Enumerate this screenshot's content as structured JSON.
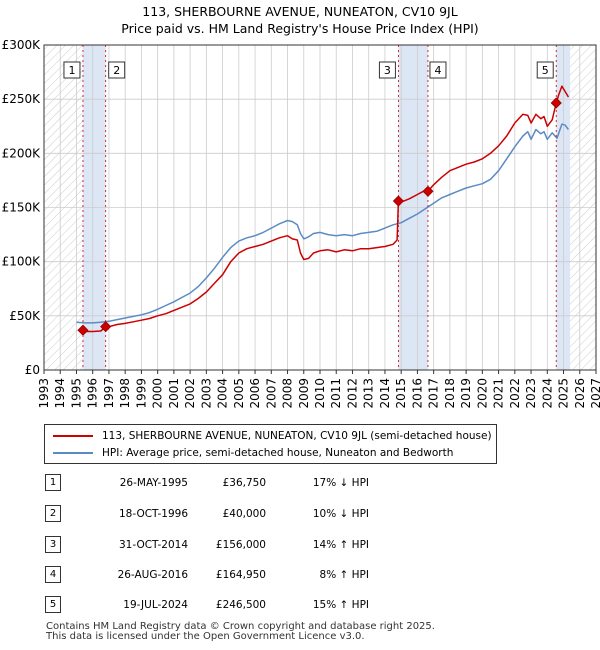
{
  "title_line1": "113, SHERBOURNE AVENUE, NUNEATON, CV10 9JL",
  "title_line2": "Price paid vs. HM Land Registry's House Price Index (HPI)",
  "colors": {
    "property": "#cc0000",
    "hpi": "#5b8bc5",
    "shade": "#dde6f4",
    "grid": "#cccccc"
  },
  "chart_data": {
    "type": "line",
    "title": "Price paid vs. HM Land Registry's House Price Index (HPI)",
    "xlabel": "",
    "ylabel": "",
    "xlim": [
      1993,
      2027
    ],
    "ylim": [
      0,
      300000
    ],
    "x_ticks": [
      1993,
      1994,
      1995,
      1996,
      1997,
      1998,
      1999,
      2000,
      2001,
      2002,
      2003,
      2004,
      2005,
      2006,
      2007,
      2008,
      2009,
      2010,
      2011,
      2012,
      2013,
      2014,
      2015,
      2016,
      2017,
      2018,
      2019,
      2020,
      2021,
      2022,
      2023,
      2024,
      2025,
      2026,
      2027
    ],
    "y_ticks": [
      0,
      50000,
      100000,
      150000,
      200000,
      250000,
      300000
    ],
    "y_tick_labels": [
      "£0",
      "£50K",
      "£100K",
      "£150K",
      "£200K",
      "£250K",
      "£300K"
    ],
    "grid": true,
    "hatched_ranges": [
      [
        1993,
        1995.4
      ],
      [
        2025.4,
        2027
      ]
    ],
    "shaded_ranges": [
      [
        1995.4,
        1996.8
      ],
      [
        2014.83,
        2016.65
      ],
      [
        2024.55,
        2025.4
      ]
    ],
    "series": [
      {
        "name": "113, SHERBOURNE AVENUE, NUNEATON, CV10 9JL (semi-detached house)",
        "color": "#cc0000",
        "x": [
          1995.4,
          1995.6,
          1996.0,
          1996.5,
          1996.8,
          1997.0,
          1997.5,
          1998.0,
          1998.5,
          1999.0,
          1999.5,
          2000.0,
          2000.5,
          2001.0,
          2001.5,
          2002.0,
          2002.5,
          2003.0,
          2003.5,
          2004.0,
          2004.5,
          2005.0,
          2005.5,
          2006.0,
          2006.5,
          2007.0,
          2007.5,
          2008.0,
          2008.3,
          2008.6,
          2008.8,
          2009.0,
          2009.3,
          2009.6,
          2010.0,
          2010.5,
          2011.0,
          2011.5,
          2012.0,
          2012.5,
          2013.0,
          2013.5,
          2014.0,
          2014.5,
          2014.75,
          2014.83,
          2015.0,
          2015.5,
          2016.0,
          2016.5,
          2016.65,
          2017.0,
          2017.5,
          2018.0,
          2018.5,
          2019.0,
          2019.5,
          2020.0,
          2020.5,
          2021.0,
          2021.5,
          2022.0,
          2022.5,
          2022.8,
          2023.0,
          2023.3,
          2023.6,
          2023.8,
          2024.0,
          2024.3,
          2024.55,
          2024.7,
          2024.9,
          2025.1,
          2025.3
        ],
        "values": [
          36750,
          35500,
          35500,
          36000,
          40000,
          40000,
          42000,
          43000,
          44500,
          46000,
          47500,
          50000,
          52000,
          55000,
          58000,
          61000,
          66000,
          72000,
          80000,
          88000,
          100000,
          108000,
          112000,
          114000,
          116000,
          119000,
          122000,
          124000,
          121000,
          120000,
          108000,
          102000,
          103000,
          108000,
          110000,
          111000,
          109000,
          111000,
          110000,
          112000,
          112000,
          113000,
          114000,
          116000,
          120000,
          156000,
          155000,
          158000,
          162000,
          166000,
          164950,
          171000,
          178000,
          184000,
          187000,
          190000,
          192000,
          195000,
          200000,
          207000,
          216000,
          228000,
          236000,
          235000,
          228000,
          236000,
          232000,
          234000,
          225000,
          231000,
          246500,
          254000,
          262000,
          257000,
          252000
        ]
      },
      {
        "name": "HPI: Average price, semi-detached house, Nuneaton and Bedworth",
        "color": "#5b8bc5",
        "x": [
          1995.0,
          1995.5,
          1996.0,
          1996.5,
          1997.0,
          1997.5,
          1998.0,
          1998.5,
          1999.0,
          1999.5,
          2000.0,
          2000.5,
          2001.0,
          2001.5,
          2002.0,
          2002.5,
          2003.0,
          2003.5,
          2004.0,
          2004.5,
          2005.0,
          2005.5,
          2006.0,
          2006.5,
          2007.0,
          2007.5,
          2008.0,
          2008.3,
          2008.6,
          2008.8,
          2009.0,
          2009.3,
          2009.6,
          2010.0,
          2010.5,
          2011.0,
          2011.5,
          2012.0,
          2012.5,
          2013.0,
          2013.5,
          2014.0,
          2014.5,
          2015.0,
          2015.5,
          2016.0,
          2016.5,
          2017.0,
          2017.5,
          2018.0,
          2018.5,
          2019.0,
          2019.5,
          2020.0,
          2020.5,
          2021.0,
          2021.5,
          2022.0,
          2022.5,
          2022.8,
          2023.0,
          2023.3,
          2023.6,
          2023.8,
          2024.0,
          2024.3,
          2024.6,
          2024.9,
          2025.1,
          2025.3
        ],
        "values": [
          44000,
          43500,
          43500,
          44000,
          45000,
          46500,
          48000,
          49500,
          51000,
          53000,
          56000,
          59500,
          63000,
          67000,
          71000,
          77000,
          85000,
          94000,
          104000,
          113000,
          119000,
          122000,
          124000,
          127000,
          131000,
          135000,
          138000,
          137000,
          134000,
          126000,
          121000,
          123000,
          126000,
          127000,
          125000,
          124000,
          125000,
          124000,
          126000,
          127000,
          128000,
          131000,
          134000,
          136000,
          140000,
          144000,
          149000,
          154000,
          159000,
          162000,
          165000,
          168000,
          170000,
          172000,
          176000,
          184000,
          195000,
          206000,
          216000,
          220000,
          213000,
          222000,
          218000,
          220000,
          213000,
          219000,
          214000,
          227000,
          226000,
          222000
        ]
      }
    ],
    "markers": [
      {
        "label": "1",
        "x": 1995.4,
        "value": 36750
      },
      {
        "label": "2",
        "x": 1996.8,
        "value": 40000
      },
      {
        "label": "3",
        "x": 2014.83,
        "value": 156000
      },
      {
        "label": "4",
        "x": 2016.65,
        "value": 164950
      },
      {
        "label": "5",
        "x": 2024.55,
        "value": 246500
      }
    ]
  },
  "legend": {
    "property": "113, SHERBOURNE AVENUE, NUNEATON, CV10 9JL (semi-detached house)",
    "hpi": "HPI: Average price, semi-detached house, Nuneaton and Bedworth"
  },
  "sales": [
    {
      "num": "1",
      "date": "26-MAY-1995",
      "price": "£36,750",
      "hpi": "17% ↓ HPI"
    },
    {
      "num": "2",
      "date": "18-OCT-1996",
      "price": "£40,000",
      "hpi": "10% ↓ HPI"
    },
    {
      "num": "3",
      "date": "31-OCT-2014",
      "price": "£156,000",
      "hpi": "14% ↑ HPI"
    },
    {
      "num": "4",
      "date": "26-AUG-2016",
      "price": "£164,950",
      "hpi": "8% ↑ HPI"
    },
    {
      "num": "5",
      "date": "19-JUL-2024",
      "price": "£246,500",
      "hpi": "15% ↑ HPI"
    }
  ],
  "footer": {
    "line1": "Contains HM Land Registry data © Crown copyright and database right 2025.",
    "line2": "This data is licensed under the Open Government Licence v3.0."
  }
}
